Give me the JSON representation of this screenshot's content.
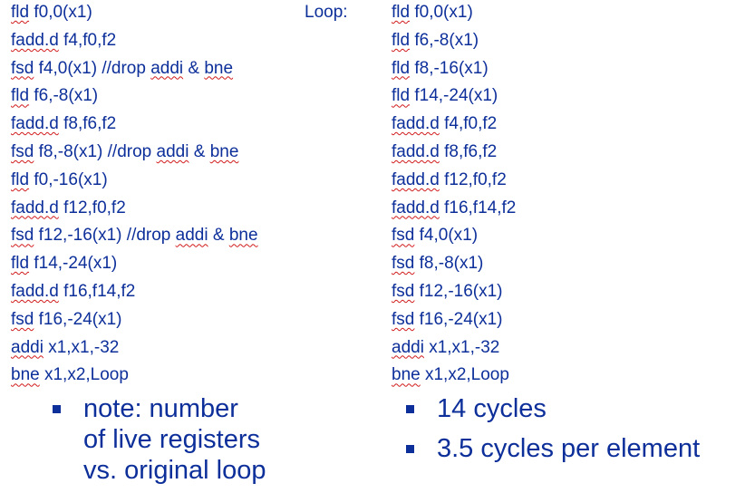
{
  "loop_label": "Loop:",
  "left_code": [
    {
      "op": "fld",
      "rest": " f0,0(x1)"
    },
    {
      "op": "fadd.d",
      "rest": " f4,f0,f2"
    },
    {
      "op": "fsd",
      "rest": " f4,0(x1) //drop ",
      "word1": "addi",
      "mid": " & ",
      "word2": "bne"
    },
    {
      "op": "fld",
      "rest": " f6,-8(x1)"
    },
    {
      "op": "fadd.d",
      "rest": " f8,f6,f2"
    },
    {
      "op": "fsd",
      "rest": " f8,-8(x1) //drop ",
      "word1": "addi",
      "mid": " & ",
      "word2": "bne"
    },
    {
      "op": "fld",
      "rest": " f0,-16(x1)"
    },
    {
      "op": "fadd.d",
      "rest": " f12,f0,f2"
    },
    {
      "op": "fsd",
      "rest": " f12,-16(x1) //drop ",
      "word1": "addi",
      "mid": " & ",
      "word2": "bne"
    },
    {
      "op": "fld",
      "rest": " f14,-24(x1)"
    },
    {
      "op": "fadd.d",
      "rest": " f16,f14,f2"
    },
    {
      "op": "fsd",
      "rest": " f16,-24(x1)"
    },
    {
      "op": "addi",
      "rest": " x1,x1,-32"
    },
    {
      "op": "bne",
      "rest": " x1,x2,Loop"
    }
  ],
  "right_code": [
    {
      "op": "fld",
      "rest": " f0,0(x1)"
    },
    {
      "op": "fld",
      "rest": " f6,-8(x1)"
    },
    {
      "op": "fld",
      "rest": " f8,-16(x1)"
    },
    {
      "op": "fld",
      "rest": " f14,-24(x1)"
    },
    {
      "op": "fadd.d",
      "rest": " f4,f0,f2"
    },
    {
      "op": "fadd.d",
      "rest": " f8,f6,f2"
    },
    {
      "op": "fadd.d",
      "rest": " f12,f0,f2"
    },
    {
      "op": "fadd.d",
      "rest": " f16,f14,f2"
    },
    {
      "op": "fsd",
      "rest": " f4,0(x1)"
    },
    {
      "op": "fsd",
      "rest": " f8,-8(x1)"
    },
    {
      "op": "fsd",
      "rest": " f12,-16(x1)"
    },
    {
      "op": "fsd",
      "rest": " f16,-24(x1)"
    },
    {
      "op": "addi",
      "rest": " x1,x1,-32"
    },
    {
      "op": "bne",
      "rest": " x1,x2,Loop"
    }
  ],
  "left_bullets": [
    "note:  number\nof live registers\nvs. original loop"
  ],
  "right_bullets": [
    "14 cycles",
    "3.5 cycles per element"
  ],
  "colors": {
    "text": "#0d2f9a",
    "spellcheck_underline": "#d11a1a"
  }
}
